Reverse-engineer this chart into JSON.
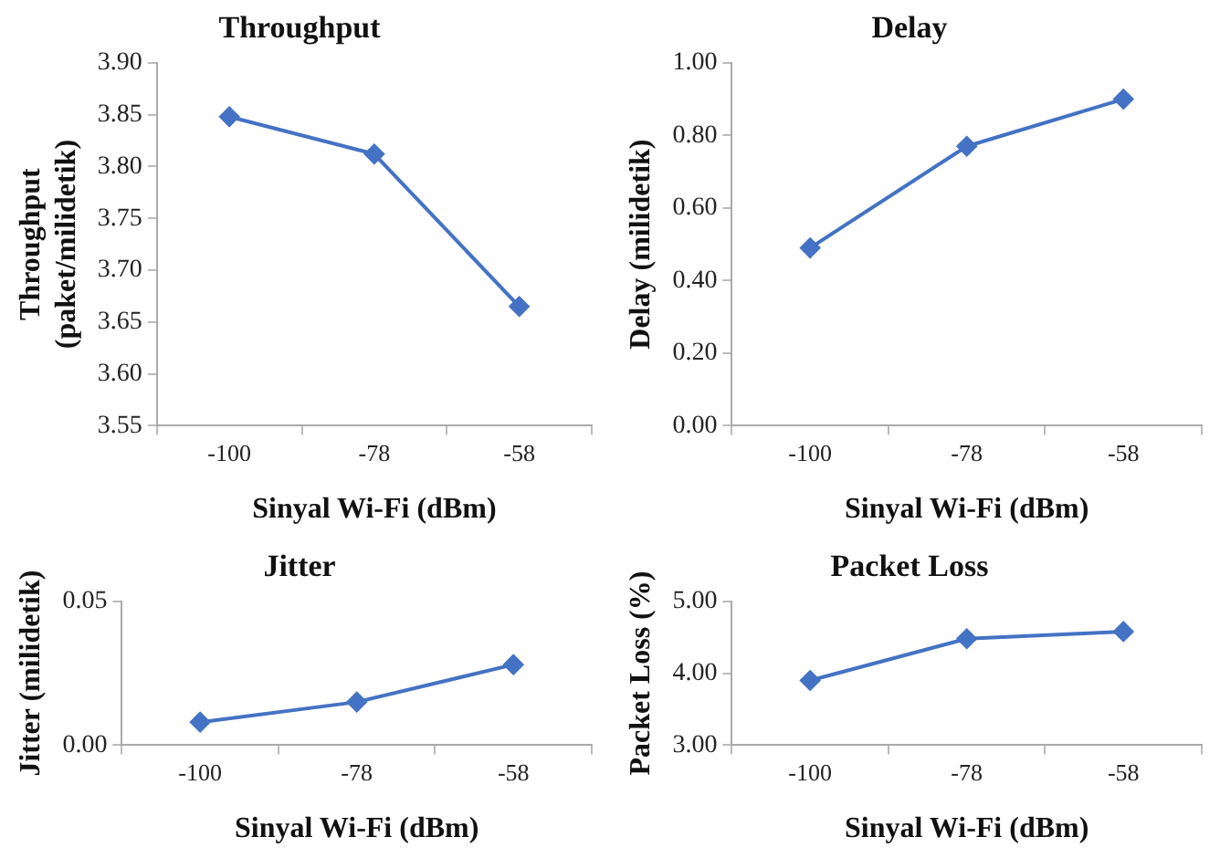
{
  "chart_data": [
    {
      "type": "line",
      "title": "Throughput",
      "xlabel": "Sinyal Wi-Fi (dBm)",
      "ylabel": "Throughput\n(paket/milidetik)",
      "categories": [
        "-100",
        "-78",
        "-58"
      ],
      "series": [
        {
          "color": "#4472c4",
          "values": [
            3.848,
            3.812,
            3.665
          ]
        }
      ],
      "ylim": [
        3.55,
        3.9
      ],
      "yticks": [
        {
          "value": 3.55,
          "label": "3.55"
        },
        {
          "value": 3.6,
          "label": "3.60"
        },
        {
          "value": 3.65,
          "label": "3.65"
        },
        {
          "value": 3.7,
          "label": "3.70"
        },
        {
          "value": 3.75,
          "label": "3.75"
        },
        {
          "value": 3.8,
          "label": "3.80"
        },
        {
          "value": 3.85,
          "label": "3.85"
        },
        {
          "value": 3.9,
          "label": "3.90"
        }
      ],
      "grid": false,
      "legend": false,
      "marker": "diamond",
      "line_style": "solid"
    },
    {
      "type": "line",
      "title": "Delay",
      "xlabel": "Sinyal Wi-Fi (dBm)",
      "ylabel": "Delay (milidetik)",
      "categories": [
        "-100",
        "-78",
        "-58"
      ],
      "series": [
        {
          "color": "#4472c4",
          "values": [
            0.49,
            0.77,
            0.9
          ]
        }
      ],
      "ylim": [
        0,
        1
      ],
      "yticks": [
        {
          "value": 0,
          "label": "0.00"
        },
        {
          "value": 0.2,
          "label": "0.20"
        },
        {
          "value": 0.4,
          "label": "0.40"
        },
        {
          "value": 0.6,
          "label": "0.60"
        },
        {
          "value": 0.8,
          "label": "0.80"
        },
        {
          "value": 1,
          "label": "1.00"
        }
      ],
      "grid": false,
      "legend": false,
      "marker": "diamond",
      "line_style": "solid"
    },
    {
      "type": "line",
      "title": "Jitter",
      "xlabel": "Sinyal Wi-Fi (dBm)",
      "ylabel": "Jitter (milidetik)",
      "categories": [
        "-100",
        "-78",
        "-58"
      ],
      "series": [
        {
          "color": "#4472c4",
          "values": [
            0.008,
            0.015,
            0.028
          ]
        }
      ],
      "ylim": [
        0,
        0.05
      ],
      "yticks": [
        {
          "value": 0,
          "label": "0.00"
        },
        {
          "value": 0.05,
          "label": "0.05"
        }
      ],
      "grid": false,
      "legend": false,
      "marker": "diamond",
      "line_style": "solid"
    },
    {
      "type": "line",
      "title": "Packet Loss",
      "xlabel": "Sinyal Wi-Fi (dBm)",
      "ylabel": "Packet Loss (%)",
      "categories": [
        "-100",
        "-78",
        "-58"
      ],
      "series": [
        {
          "color": "#4472c4",
          "values": [
            3.9,
            4.48,
            4.58
          ]
        }
      ],
      "ylim": [
        3,
        5
      ],
      "yticks": [
        {
          "value": 3,
          "label": "3.00"
        },
        {
          "value": 4,
          "label": "4.00"
        },
        {
          "value": 5,
          "label": "5.00"
        }
      ],
      "grid": false,
      "legend": false,
      "marker": "diamond",
      "line_style": "solid"
    }
  ]
}
